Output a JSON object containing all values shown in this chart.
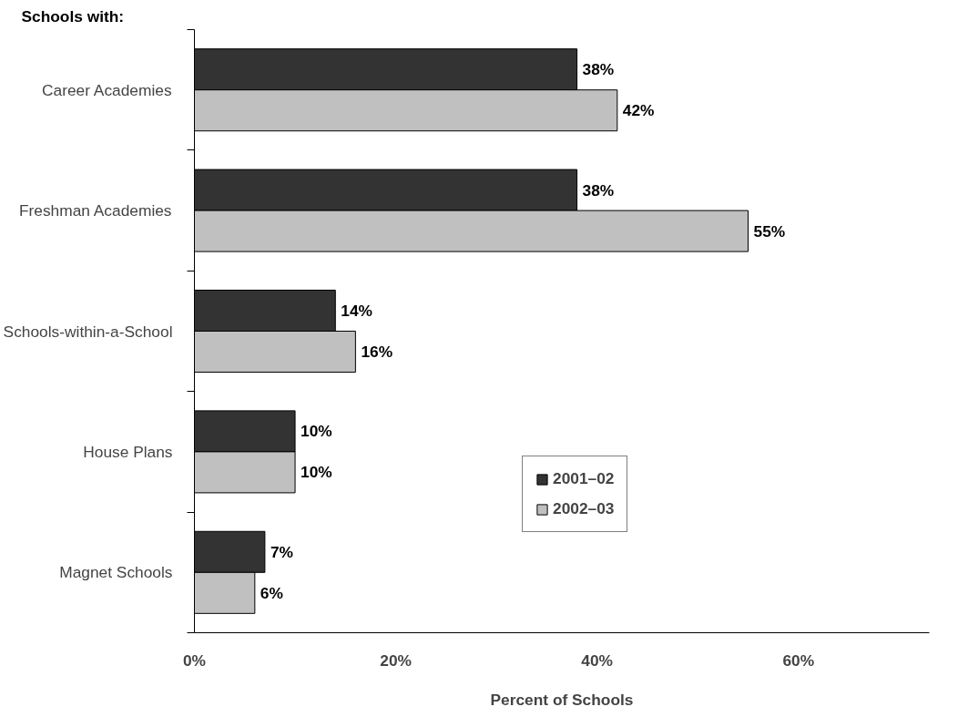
{
  "chart_data": {
    "type": "bar",
    "orientation": "horizontal",
    "xlabel": "Percent of Schools",
    "annotations": [
      "Schools with:"
    ],
    "categories": [
      "Career Academies",
      "Freshman Academies",
      "Schools-within-a-School",
      "House Plans",
      "Magnet Schools"
    ],
    "series": [
      {
        "name": "2001–02",
        "color": "#333333",
        "values": [
          38,
          38,
          14,
          10,
          7
        ],
        "value_labels": [
          "38%",
          "38%",
          "14%",
          "10%",
          "7%"
        ]
      },
      {
        "name": "2002–03",
        "color": "#c0c0c0",
        "values": [
          42,
          55,
          16,
          10,
          6
        ],
        "value_labels": [
          "42%",
          "55%",
          "16%",
          "10%",
          "6%"
        ]
      }
    ],
    "xticks": [
      {
        "value": 0,
        "label": "0%"
      },
      {
        "value": 20,
        "label": "20%"
      },
      {
        "value": 40,
        "label": "40%"
      },
      {
        "value": 60,
        "label": "60%"
      }
    ],
    "xlim": [
      0,
      73
    ],
    "grid": false,
    "legend": "right"
  }
}
